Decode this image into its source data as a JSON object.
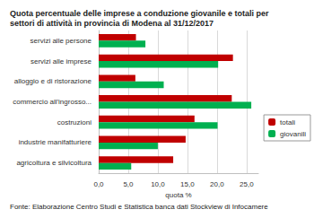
{
  "chart_data": {
    "type": "bar",
    "orientation": "horizontal",
    "title": "Quota percentuale delle imprese a conduzione giovanile e totali per settori di attività in provincia di Modena al 31/12/2017",
    "x_label": "quota %",
    "source": "Fonte: Elaborazione Centro Studi e Statistica banca dati Stockview di Infocamere",
    "categories": [
      "servizi alle persone",
      "servizi alle imprese",
      "alloggio e di ristorazione",
      "commercio all'ingrosso...",
      "costruzioni",
      "industrie manifatturiere",
      "agricoltura e silvicoltura"
    ],
    "series": [
      {
        "name": "totali",
        "color": "#c00000",
        "values": [
          6.3,
          22.7,
          6.2,
          22.5,
          16.2,
          14.7,
          12.6
        ]
      },
      {
        "name": "giovanili",
        "color": "#00b050",
        "values": [
          7.9,
          20.2,
          11.0,
          25.8,
          20.1,
          10.0,
          5.5
        ]
      }
    ],
    "xlim": [
      0,
      27
    ],
    "xticks": [
      {
        "value": 0,
        "label": "0,0"
      },
      {
        "value": 5,
        "label": "5,0"
      },
      {
        "value": 10,
        "label": "10,0"
      },
      {
        "value": 15,
        "label": "15,0"
      },
      {
        "value": 20,
        "label": "20,0"
      },
      {
        "value": 25,
        "label": "25,0"
      }
    ],
    "grid": true,
    "legend": "right"
  }
}
